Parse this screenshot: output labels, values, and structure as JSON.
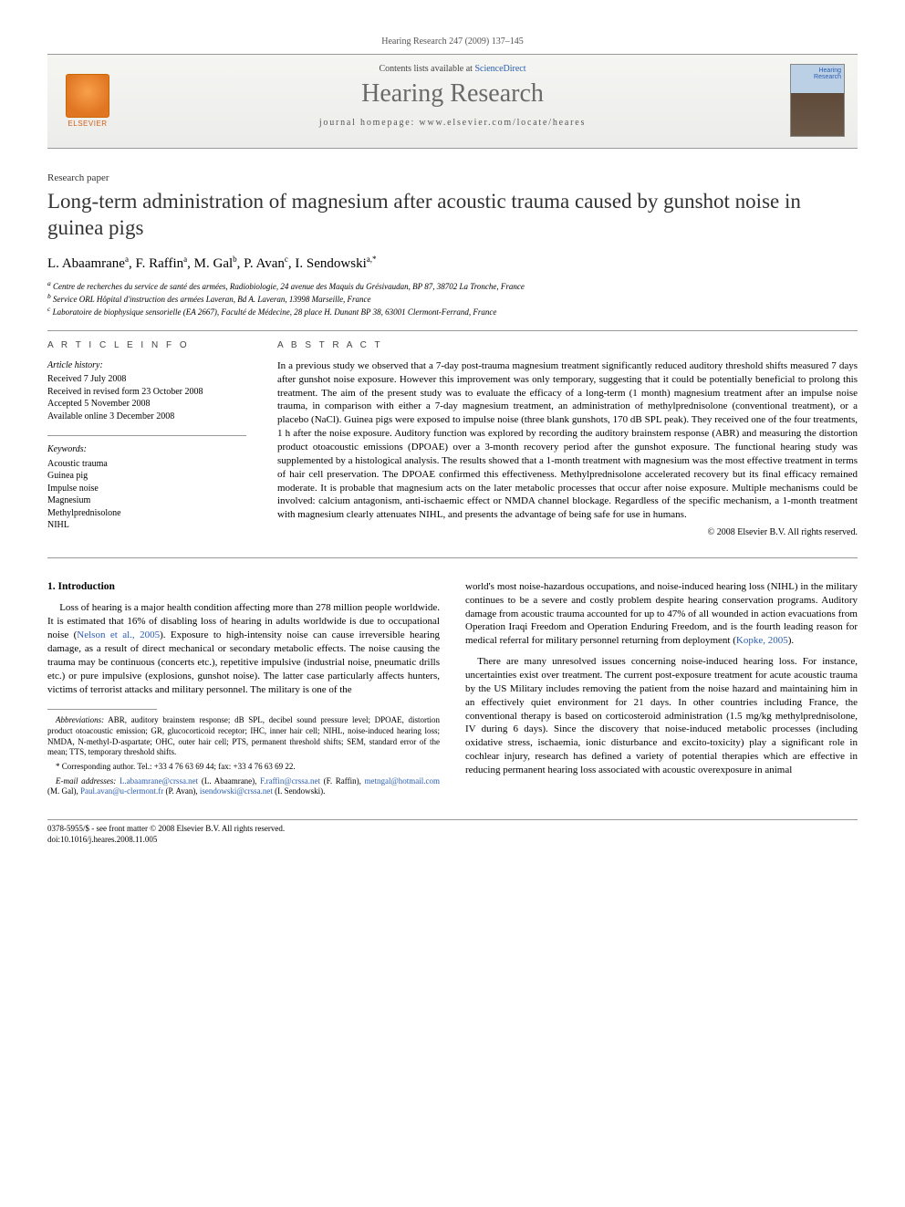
{
  "header": {
    "citation": "Hearing Research 247 (2009) 137–145",
    "contents_prefix": "Contents lists available at ",
    "contents_link": "ScienceDirect",
    "journal": "Hearing Research",
    "homepage_prefix": "journal homepage: ",
    "homepage_url": "www.elsevier.com/locate/heares",
    "elsevier": "ELSEVIER",
    "cover_label": "Hearing\nResearch"
  },
  "article": {
    "type": "Research paper",
    "title": "Long-term administration of magnesium after acoustic trauma caused by gunshot noise in guinea pigs",
    "authors_html": "L. Abaamrane<sup>a</sup>, F. Raffin<sup>a</sup>, M. Gal<sup>b</sup>, P. Avan<sup>c</sup>, I. Sendowski<sup>a,*</sup>",
    "affiliations": [
      "a Centre de recherches du service de santé des armées, Radiobiologie, 24 avenue des Maquis du Grésivaudan, BP 87, 38702 La Tronche, France",
      "b Service ORL Hôpital d'instruction des armées Laveran, Bd A. Laveran, 13998 Marseille, France",
      "c Laboratoire de biophysique sensorielle (EA 2667), Faculté de Médecine, 28 place H. Dunant BP 38, 63001 Clermont-Ferrand, France"
    ]
  },
  "info": {
    "heading": "A R T I C L E   I N F O",
    "history_head": "Article history:",
    "history": [
      "Received 7 July 2008",
      "Received in revised form 23 October 2008",
      "Accepted 5 November 2008",
      "Available online 3 December 2008"
    ],
    "kw_head": "Keywords:",
    "keywords": [
      "Acoustic trauma",
      "Guinea pig",
      "Impulse noise",
      "Magnesium",
      "Methylprednisolone",
      "NIHL"
    ]
  },
  "abstract": {
    "heading": "A B S T R A C T",
    "text": "In a previous study we observed that a 7-day post-trauma magnesium treatment significantly reduced auditory threshold shifts measured 7 days after gunshot noise exposure. However this improvement was only temporary, suggesting that it could be potentially beneficial to prolong this treatment. The aim of the present study was to evaluate the efficacy of a long-term (1 month) magnesium treatment after an impulse noise trauma, in comparison with either a 7-day magnesium treatment, an administration of methylprednisolone (conventional treatment), or a placebo (NaCl). Guinea pigs were exposed to impulse noise (three blank gunshots, 170 dB SPL peak). They received one of the four treatments, 1 h after the noise exposure. Auditory function was explored by recording the auditory brainstem response (ABR) and measuring the distortion product otoacoustic emissions (DPOAE) over a 3-month recovery period after the gunshot exposure. The functional hearing study was supplemented by a histological analysis. The results showed that a 1-month treatment with magnesium was the most effective treatment in terms of hair cell preservation. The DPOAE confirmed this effectiveness. Methylprednisolone accelerated recovery but its final efficacy remained moderate. It is probable that magnesium acts on the later metabolic processes that occur after noise exposure. Multiple mechanisms could be involved: calcium antagonism, anti-ischaemic effect or NMDA channel blockage. Regardless of the specific mechanism, a 1-month treatment with magnesium clearly attenuates NIHL, and presents the advantage of being safe for use in humans.",
    "copyright": "© 2008 Elsevier B.V. All rights reserved."
  },
  "body": {
    "section1_head": "1. Introduction",
    "p1a": "Loss of hearing is a major health condition affecting more than 278 million people worldwide. It is estimated that 16% of disabling loss of hearing in adults worldwide is due to occupational noise (",
    "p1_ref": "Nelson et al., 2005",
    "p1b": "). Exposure to high-intensity noise can cause irreversible hearing damage, as a result of direct mechanical or secondary metabolic effects. The noise causing the trauma may be continuous (concerts etc.), repetitive impulsive (industrial noise, pneumatic drills etc.) or pure impulsive (explosions, gunshot noise). The latter case particularly affects hunters, victims of terrorist attacks and military personnel. The military is one of the",
    "p2a": "world's most noise-hazardous occupations, and noise-induced hearing loss (NIHL) in the military continues to be a severe and costly problem despite hearing conservation programs. Auditory damage from acoustic trauma accounted for up to 47% of all wounded in action evacuations from Operation Iraqi Freedom and Operation Enduring Freedom, and is the fourth leading reason for medical referral for military personnel returning from deployment (",
    "p2_ref": "Kopke, 2005",
    "p2b": ").",
    "p3": "There are many unresolved issues concerning noise-induced hearing loss. For instance, uncertainties exist over treatment. The current post-exposure treatment for acute acoustic trauma by the US Military includes removing the patient from the noise hazard and maintaining him in an effectively quiet environment for 21 days. In other countries including France, the conventional therapy is based on corticosteroid administration (1.5 mg/kg methylprednisolone, IV during 6 days). Since the discovery that noise-induced metabolic processes (including oxidative stress, ischaemia, ionic disturbance and excito-toxicity) play a significant role in cochlear injury, research has defined a variety of potential therapies which are effective in reducing permanent hearing loss associated with acoustic overexposure in animal"
  },
  "footnotes": {
    "abbr_label": "Abbreviations:",
    "abbr": " ABR, auditory brainstem response; dB SPL, decibel sound pressure level; DPOAE, distortion product otoacoustic emission; GR, glucocorticoid receptor; IHC, inner hair cell; NIHL, noise-induced hearing loss; NMDA, N-methyl-D-aspartate; OHC, outer hair cell; PTS, permanent threshold shifts; SEM, standard error of the mean; TTS, temporary threshold shifts.",
    "corr": "* Corresponding author. Tel.: +33 4 76 63 69 44; fax: +33 4 76 63 69 22.",
    "email_label": "E-mail addresses:",
    "emails": [
      {
        "addr": "L.abaamrane@crssa.net",
        "who": " (L. Abaamrane), "
      },
      {
        "addr": "F.raffin@crssa.net",
        "who": " (F. Raffin), "
      },
      {
        "addr": "metngal@hotmail.com",
        "who": " (M. Gal), "
      },
      {
        "addr": "Paul.avan@u-clermont.fr",
        "who": " (P. Avan), "
      },
      {
        "addr": "isendowski@crssa.net",
        "who": " (I. Sendowski)."
      }
    ]
  },
  "footer": {
    "line1": "0378-5955/$ - see front matter © 2008 Elsevier B.V. All rights reserved.",
    "line2": "doi:10.1016/j.heares.2008.11.005"
  }
}
